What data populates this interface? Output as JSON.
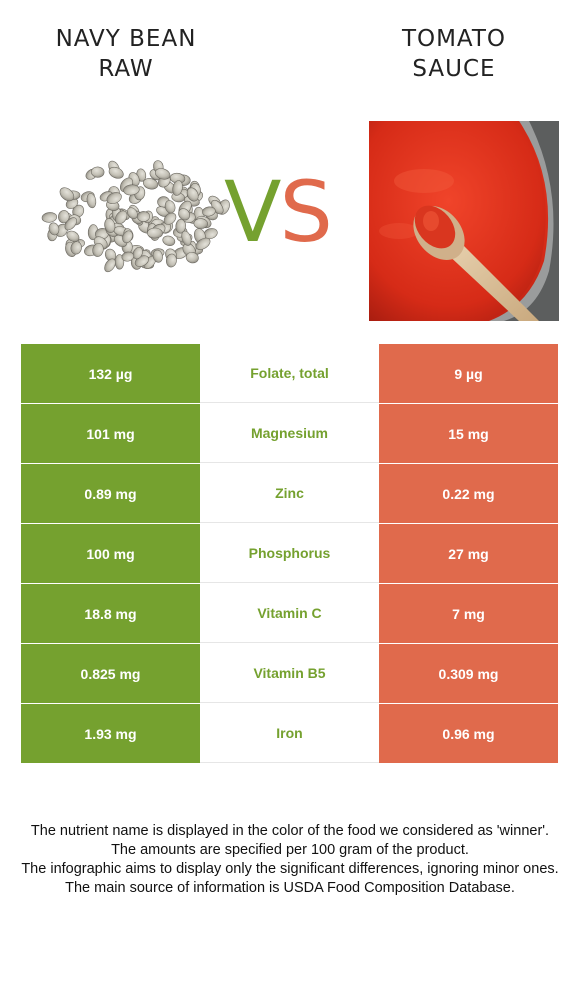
{
  "foods": {
    "left": {
      "name": "NAVY BEAN\nRAW",
      "color": "#75a12f"
    },
    "right": {
      "name": "TOMATO\nSAUCE",
      "color": "#e06a4c"
    }
  },
  "vs": {
    "v": "V",
    "s": "S"
  },
  "rows": [
    {
      "nutrient": "Folate, total",
      "left": "132 µg",
      "right": "9 µg"
    },
    {
      "nutrient": "Magnesium",
      "left": "101 mg",
      "right": "15 mg"
    },
    {
      "nutrient": "Zinc",
      "left": "0.89 mg",
      "right": "0.22 mg"
    },
    {
      "nutrient": "Phosphorus",
      "left": "100 mg",
      "right": "27 mg"
    },
    {
      "nutrient": "Vitamin C",
      "left": "18.8 mg",
      "right": "7 mg"
    },
    {
      "nutrient": "Vitamin B5",
      "left": "0.825 mg",
      "right": "0.309 mg"
    },
    {
      "nutrient": "Iron",
      "left": "1.93 mg",
      "right": "0.96 mg"
    }
  ],
  "footnotes": [
    "The nutrient name is displayed in the color of the food we considered as 'winner'.",
    "The amounts are specified per 100 gram of the product.",
    "The infographic aims to display only the significant differences, ignoring minor ones.",
    "The main source of information is USDA Food Composition Database."
  ]
}
